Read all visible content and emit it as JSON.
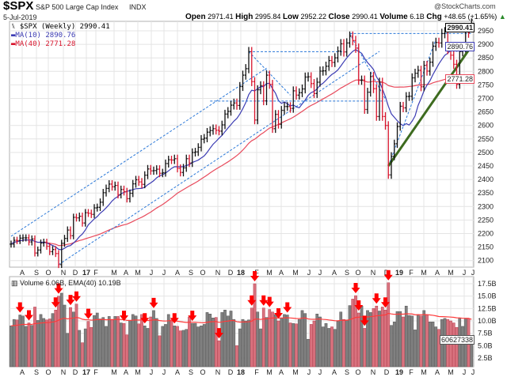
{
  "header": {
    "symbol": "$SPX",
    "name": "S&P 500 Large Cap Index",
    "exchange": "INDX",
    "watermark": "@StockCharts.com",
    "date": "5-Jul-2019",
    "open_label": "Open",
    "open": "2971.41",
    "high_label": "High",
    "high": "2995.84",
    "low_label": "Low",
    "low": "2952.22",
    "close_label": "Close",
    "close": "2990.41",
    "volume_label": "Volume",
    "volume": "6.1B",
    "chg_label": "Chg",
    "chg": "+48.65 (+1.65%)",
    "chg_arrow": "▲"
  },
  "legend": {
    "price": "$SPX (Weekly) 2990.41",
    "ma10": "MA(10) 2890.76",
    "ma40": "MA(40) 2771.28",
    "volume": "Volume 6.06B, EMA(40) 10.19B"
  },
  "value_boxes": {
    "close": "2990.41",
    "ma10": "2890.76",
    "ma40": "2771.28",
    "volume": "60627338"
  },
  "colors": {
    "up_bar": "#111111",
    "down_bar": "#d8142c",
    "ma10": "#3b3bb3",
    "ma40": "#e84a5c",
    "trendline": "#2a78d8",
    "support_line": "#3d6b1f",
    "volume_up": "#808080",
    "volume_down": "#d9737f",
    "ema": "#ff3b3b",
    "arrow": "#ff0000"
  },
  "chart_data": [
    {
      "type": "ohlc-bar",
      "title": "$SPX (Weekly)",
      "period": "weekly",
      "closes": [
        2161,
        2175,
        2174,
        2183,
        2184,
        2184,
        2169,
        2180,
        2128,
        2139,
        2165,
        2168,
        2153,
        2133,
        2141,
        2126,
        2085,
        2164,
        2182,
        2213,
        2192,
        2260,
        2258,
        2264,
        2239,
        2277,
        2275,
        2271,
        2295,
        2297,
        2316,
        2351,
        2367,
        2383,
        2373,
        2378,
        2344,
        2363,
        2355,
        2329,
        2349,
        2384,
        2399,
        2391,
        2382,
        2416,
        2439,
        2432,
        2433,
        2438,
        2423,
        2425,
        2459,
        2473,
        2472,
        2477,
        2441,
        2426,
        2443,
        2477,
        2461,
        2500,
        2502,
        2519,
        2549,
        2553,
        2575,
        2581,
        2588,
        2582,
        2579,
        2602,
        2642,
        2652,
        2675,
        2683,
        2674,
        2744,
        2786,
        2810,
        2873,
        2762,
        2620,
        2732,
        2747,
        2691,
        2786,
        2752,
        2588,
        2641,
        2604,
        2656,
        2670,
        2670,
        2663,
        2728,
        2712,
        2721,
        2735,
        2779,
        2780,
        2755,
        2718,
        2760,
        2801,
        2802,
        2819,
        2840,
        2833,
        2850,
        2875,
        2902,
        2872,
        2905,
        2930,
        2914,
        2886,
        2767,
        2768,
        2659,
        2723,
        2781,
        2736,
        2633,
        2760,
        2633,
        2600,
        2417,
        2486,
        2532,
        2596,
        2671,
        2665,
        2707,
        2708,
        2776,
        2793,
        2804,
        2743,
        2822,
        2801,
        2834,
        2893,
        2907,
        2905,
        2940,
        2946,
        2881,
        2860,
        2826,
        2752,
        2873,
        2887,
        2950,
        2942,
        2990.41
      ],
      "last_bar": {
        "open": 2971.41,
        "high": 2995.84,
        "low": 2952.22,
        "close": 2990.41
      },
      "overlays": [
        {
          "name": "MA(10)",
          "value": 2890.76
        },
        {
          "name": "MA(40)",
          "value": 2771.28
        }
      ],
      "yticks": [
        2950,
        2900,
        2850,
        2800,
        2750,
        2700,
        2650,
        2600,
        2550,
        2500,
        2450,
        2400,
        2350,
        2300,
        2250,
        2200,
        2150,
        2100
      ],
      "ylim": [
        2075,
        3000
      ],
      "xticks": [
        "A",
        "S",
        "O",
        "N",
        "D",
        "17",
        "F",
        "M",
        "A",
        "M",
        "J",
        "J",
        "A",
        "S",
        "O",
        "N",
        "D",
        "18",
        "F",
        "M",
        "A",
        "M",
        "J",
        "J",
        "A",
        "S",
        "O",
        "N",
        "D",
        "19",
        "F",
        "M",
        "A",
        "M",
        "J",
        "J"
      ],
      "trendlines": [
        {
          "style": "dashed",
          "from": [
            "2016-07-15",
            2190
          ],
          "to": [
            "2018-03-09",
            2812
          ]
        },
        {
          "style": "dashed",
          "from": [
            "2016-11-04",
            2085
          ],
          "to": [
            "2018-11-30",
            2874
          ]
        },
        {
          "style": "dashed",
          "from": [
            "2018-01-26",
            2873
          ],
          "to": [
            "2018-09-07",
            2873
          ]
        },
        {
          "style": "dashed",
          "from": [
            "2018-09-21",
            2940
          ],
          "to": [
            "2019-07-05",
            2940
          ]
        },
        {
          "style": "dashed",
          "from": [
            "2017-10-27",
            2690
          ],
          "to": [
            "2018-12-14",
            2690
          ]
        },
        {
          "style": "dashed",
          "from": [
            "2018-01-26",
            2873
          ],
          "to": [
            "2018-05-04",
            2712
          ]
        },
        {
          "style": "dashed",
          "from": [
            "2018-09-21",
            2940
          ],
          "to": [
            "2018-12-14",
            2697
          ]
        },
        {
          "style": "dashed",
          "from": [
            "2018-12-21",
            2450
          ],
          "to": [
            "2019-04-12",
            2918
          ]
        },
        {
          "style": "thick-green",
          "from": [
            "2018-12-21",
            2450
          ],
          "to": [
            "2019-07-05",
            2894
          ]
        }
      ],
      "grid": true
    },
    {
      "type": "bar",
      "title": "Volume",
      "unit": "B",
      "values": [
        9.0,
        10.3,
        10.2,
        11.2,
        11.0,
        8.9,
        9.6,
        9.1,
        12.8,
        10.1,
        11.3,
        10.5,
        10.2,
        10.4,
        11.5,
        12.2,
        15.0,
        15.6,
        13.2,
        7.5,
        12.7,
        11.8,
        13.4,
        8.1,
        5.6,
        8.4,
        9.9,
        8.7,
        11.1,
        11.6,
        10.4,
        10.7,
        8.9,
        10.9,
        10.2,
        10.9,
        10.9,
        9.6,
        9.5,
        7.2,
        10.1,
        11.3,
        11.0,
        9.4,
        11.3,
        9.0,
        8.5,
        10.8,
        12.1,
        10.5,
        7.0,
        8.9,
        9.3,
        11.3,
        10.2,
        9.0,
        8.9,
        8.0,
        8.1,
        8.3,
        10.8,
        9.5,
        9.5,
        8.8,
        9.0,
        9.3,
        11.7,
        11.4,
        10.6,
        10.7,
        6.0,
        11.7,
        12.2,
        11.0,
        12.0,
        10.3,
        5.0,
        8.4,
        10.3,
        10.0,
        10.2,
        12.6,
        17.5,
        11.8,
        8.4,
        12.6,
        10.7,
        12.3,
        11.8,
        11.3,
        10.0,
        10.5,
        11.3,
        11.2,
        9.6,
        9.5,
        9.4,
        10.3,
        12.1,
        11.5,
        6.3,
        9.3,
        10.0,
        11.4,
        10.8,
        8.8,
        9.5,
        8.5,
        8.8,
        8.3,
        9.9,
        11.8,
        10.3,
        10.2,
        13.1,
        14.4,
        15.1,
        11.6,
        13.0,
        8.5,
        12.1,
        11.7,
        12.5,
        13.0,
        12.0,
        12.8,
        12.2,
        17.7,
        9.1,
        9.8,
        11.9,
        11.9,
        10.8,
        13.0,
        11.1,
        11.0,
        8.2,
        11.3,
        11.0,
        12.1,
        11.2,
        9.8,
        9.8,
        8.8,
        8.3,
        10.3,
        10.5,
        10.3,
        10.0,
        9.6,
        8.7,
        10.5,
        8.9,
        10.5,
        10.5,
        6.06
      ],
      "ema40": 10.19,
      "arrow_weeks": [
        3,
        6,
        15,
        16,
        20,
        22,
        26,
        38,
        45,
        48,
        55,
        61,
        70,
        81,
        82,
        85,
        87,
        90,
        93,
        116,
        117,
        119,
        123,
        126,
        127
      ],
      "yticks": [
        "17.5B",
        "15.0B",
        "12.5B",
        "10.0B",
        "7.5B",
        "5.0B",
        "2.5B"
      ],
      "xticks": [
        "A",
        "S",
        "O",
        "N",
        "D",
        "17",
        "F",
        "M",
        "A",
        "M",
        "J",
        "J",
        "A",
        "S",
        "O",
        "N",
        "D",
        "18",
        "F",
        "M",
        "A",
        "M",
        "J",
        "J",
        "A",
        "S",
        "O",
        "N",
        "D",
        "19",
        "F",
        "M",
        "A",
        "M",
        "J",
        "J"
      ],
      "grid": true
    }
  ]
}
